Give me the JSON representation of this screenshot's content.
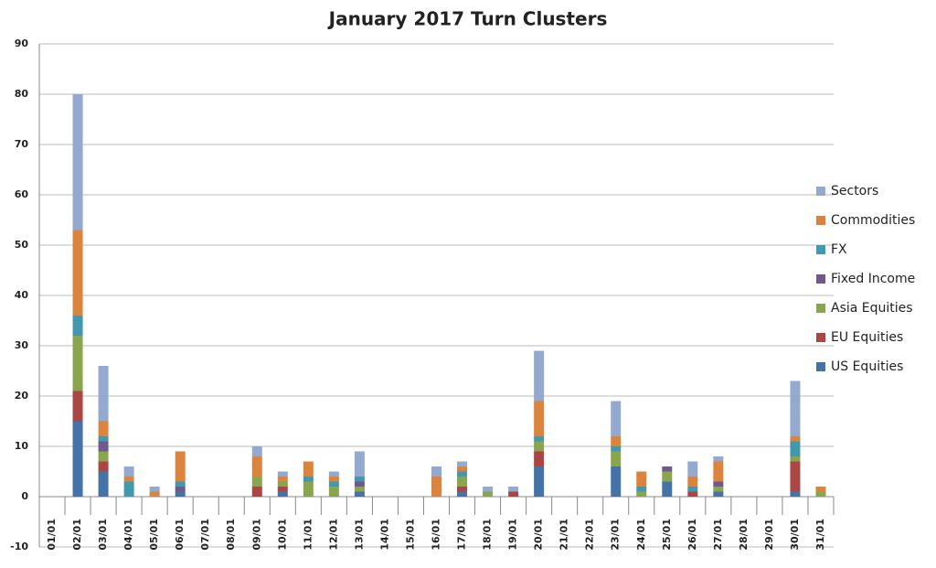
{
  "chart_data": {
    "type": "stacked-bar",
    "title": "January 2017 Turn Clusters",
    "categories": [
      "01/01",
      "02/01",
      "03/01",
      "04/01",
      "05/01",
      "06/01",
      "07/01",
      "08/01",
      "09/01",
      "10/01",
      "11/01",
      "12/01",
      "13/01",
      "14/01",
      "15/01",
      "16/01",
      "17/01",
      "18/01",
      "19/01",
      "20/01",
      "21/01",
      "22/01",
      "23/01",
      "24/01",
      "25/01",
      "26/01",
      "27/01",
      "28/01",
      "29/01",
      "30/01",
      "31/01"
    ],
    "series": [
      {
        "name": "US Equities",
        "color": "#4572a7",
        "values": [
          0,
          15,
          5,
          0,
          0,
          1,
          0,
          0,
          0,
          1,
          0,
          0,
          1,
          0,
          0,
          0,
          1,
          0,
          0,
          6,
          0,
          0,
          6,
          0,
          3,
          0,
          1,
          0,
          0,
          1,
          0
        ]
      },
      {
        "name": "EU Equities",
        "color": "#aa4643",
        "values": [
          0,
          6,
          2,
          0,
          0,
          0,
          0,
          0,
          2,
          1,
          0,
          0,
          0,
          0,
          0,
          0,
          1,
          0,
          1,
          3,
          0,
          0,
          0,
          0,
          0,
          1,
          0,
          0,
          0,
          6,
          0
        ]
      },
      {
        "name": "Asia Equities",
        "color": "#89a54e",
        "values": [
          0,
          11,
          2,
          0,
          0,
          0,
          0,
          0,
          2,
          1,
          3,
          2,
          1,
          0,
          0,
          0,
          2,
          1,
          0,
          2,
          0,
          0,
          3,
          1,
          2,
          0,
          1,
          0,
          0,
          1,
          1
        ]
      },
      {
        "name": "Fixed Income",
        "color": "#71588f",
        "values": [
          0,
          0,
          2,
          0,
          0,
          1,
          0,
          0,
          0,
          0,
          0,
          0,
          1,
          0,
          0,
          0,
          0,
          0,
          0,
          0,
          0,
          0,
          0,
          0,
          1,
          0,
          1,
          0,
          0,
          0,
          0
        ]
      },
      {
        "name": "FX",
        "color": "#4198af",
        "values": [
          0,
          4,
          1,
          3,
          0,
          1,
          0,
          0,
          0,
          0,
          1,
          1,
          1,
          0,
          0,
          0,
          1,
          0,
          0,
          1,
          0,
          0,
          1,
          1,
          0,
          1,
          0,
          0,
          0,
          3,
          0
        ]
      },
      {
        "name": "Commodities",
        "color": "#db843d",
        "values": [
          0,
          17,
          3,
          1,
          1,
          6,
          0,
          0,
          4,
          1,
          3,
          1,
          0,
          0,
          0,
          4,
          1,
          0,
          0,
          7,
          0,
          0,
          2,
          3,
          0,
          2,
          4,
          0,
          0,
          1,
          1
        ]
      },
      {
        "name": "Sectors",
        "color": "#93a9cf",
        "values": [
          0,
          27,
          11,
          2,
          1,
          0,
          0,
          0,
          2,
          1,
          0,
          1,
          5,
          0,
          0,
          2,
          1,
          1,
          1,
          10,
          0,
          0,
          7,
          0,
          0,
          3,
          1,
          0,
          0,
          11,
          0
        ]
      }
    ],
    "ylim": [
      -10,
      90
    ],
    "yticks": [
      -10,
      0,
      10,
      20,
      30,
      40,
      50,
      60,
      70,
      80,
      90
    ],
    "grid": true,
    "legend": "right"
  }
}
